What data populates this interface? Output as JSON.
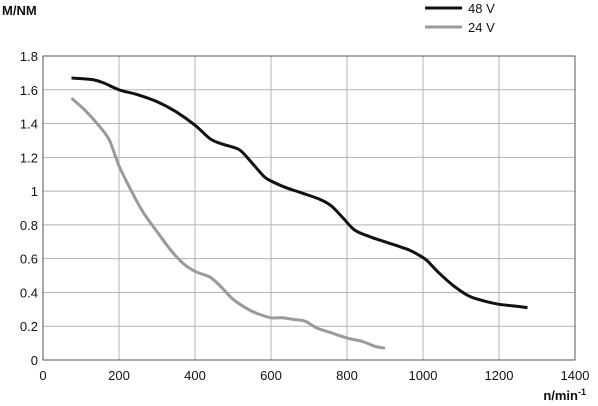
{
  "chart_data": {
    "type": "line",
    "title": "",
    "xlabel": "n/min",
    "xlabel_superscript": "-1",
    "ylabel": "M/NM",
    "xlim": [
      0,
      1400
    ],
    "ylim": [
      0,
      1.8
    ],
    "x_ticks": [
      0,
      200,
      400,
      600,
      800,
      1000,
      1200,
      1400
    ],
    "y_ticks": [
      0,
      0.2,
      0.4,
      0.6,
      0.8,
      1,
      1.2,
      1.4,
      1.6,
      1.8
    ],
    "x_tick_labels": [
      "0",
      "200",
      "400",
      "600",
      "800",
      "1000",
      "1200",
      "1400"
    ],
    "y_tick_labels": [
      "0",
      "0.2",
      "0.4",
      "0.6",
      "0.8",
      "1",
      "1.2",
      "1.4",
      "1.6",
      "1.8"
    ],
    "grid": true,
    "legend_position": "top-right",
    "series": [
      {
        "name": "48 V",
        "color": "#111111",
        "x": [
          75,
          130,
          160,
          200,
          250,
          300,
          350,
          400,
          440,
          470,
          500,
          520,
          545,
          580,
          600,
          640,
          680,
          730,
          760,
          790,
          820,
          860,
          900,
          940,
          965,
          990,
          1010,
          1040,
          1080,
          1120,
          1160,
          1200,
          1240,
          1275
        ],
        "y": [
          1.67,
          1.66,
          1.64,
          1.6,
          1.57,
          1.53,
          1.47,
          1.39,
          1.31,
          1.28,
          1.26,
          1.24,
          1.18,
          1.09,
          1.06,
          1.02,
          0.99,
          0.95,
          0.91,
          0.84,
          0.77,
          0.73,
          0.7,
          0.67,
          0.65,
          0.62,
          0.59,
          0.52,
          0.44,
          0.38,
          0.35,
          0.33,
          0.32,
          0.31
        ]
      },
      {
        "name": "24 V",
        "color": "#9a9a9a",
        "x": [
          75,
          110,
          150,
          175,
          200,
          235,
          265,
          300,
          340,
          375,
          405,
          440,
          470,
          500,
          540,
          570,
          600,
          630,
          660,
          690,
          720,
          760,
          800,
          840,
          875,
          900
        ],
        "y": [
          1.55,
          1.48,
          1.38,
          1.3,
          1.15,
          0.99,
          0.87,
          0.76,
          0.64,
          0.56,
          0.52,
          0.49,
          0.43,
          0.36,
          0.3,
          0.27,
          0.25,
          0.25,
          0.24,
          0.23,
          0.19,
          0.16,
          0.13,
          0.11,
          0.08,
          0.07
        ]
      }
    ]
  }
}
